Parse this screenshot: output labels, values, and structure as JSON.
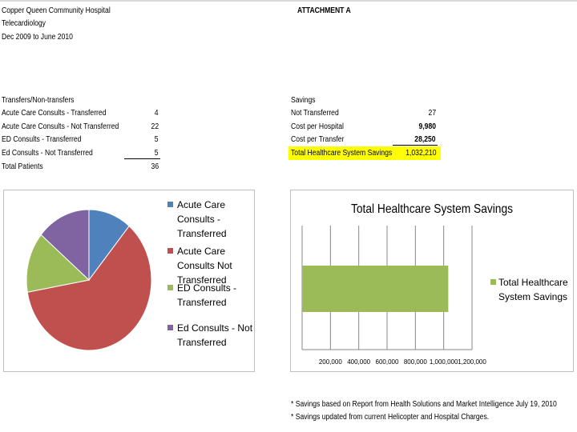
{
  "header": {
    "org": "Copper Queen Community Hospital",
    "program": "Telecardiology",
    "period": "Dec 2009 to June 2010",
    "attachment": "ATTACHMENT A"
  },
  "transfers": {
    "title": "Transfers/Non-transfers",
    "rows": [
      {
        "label": "Acute Care Consults - Transferred",
        "value": "4"
      },
      {
        "label": "Acute Care Consults - Not Transferred",
        "value": "22"
      },
      {
        "label": "ED Consults - Transferred",
        "value": "5"
      },
      {
        "label": "Ed Consults - Not Transferred",
        "value": "5"
      },
      {
        "label": "Total Patients",
        "value": "36"
      }
    ]
  },
  "savings": {
    "title": "Savings",
    "rows": [
      {
        "label": "Not Transferred",
        "value": "27"
      },
      {
        "label": "Cost per Hospital",
        "value": "9,980"
      },
      {
        "label": "Cost per Transfer",
        "value": "28,250"
      },
      {
        "label": "Total Healthcare System Savings",
        "value": "1,032,210"
      }
    ]
  },
  "colors": {
    "blue": "#4f81bd",
    "red": "#c0504d",
    "green": "#9bbb59",
    "purple": "#8064a2",
    "highlight": "#ffff00"
  },
  "chart_data": [
    {
      "type": "pie",
      "labels": [
        "Acute Care Consults - Transferred",
        "Acute Care Consults - Not Transferred",
        "ED Consults - Transferred",
        "Ed Consults - Not Transferred"
      ],
      "legend": [
        [
          "Acute Care",
          "Consults -",
          "Transferred"
        ],
        [
          "Acute Care",
          "Consults   Not",
          "Transferred"
        ],
        [
          "ED Consults -",
          "Transferred"
        ],
        [
          "Ed Consults - Not",
          "Transferred"
        ]
      ],
      "values": [
        4,
        22,
        5,
        5
      ],
      "colors": [
        "#4f81bd",
        "#c0504d",
        "#9bbb59",
        "#8064a2"
      ],
      "legend_position": "right"
    },
    {
      "type": "bar",
      "orientation": "horizontal",
      "title": "Total Healthcare System Savings",
      "series": [
        {
          "name": "Total Healthcare System Savings",
          "values": [
            1032210
          ],
          "color": "#9bbb59"
        }
      ],
      "legend_lines": [
        "Total Healthcare",
        "System Savings"
      ],
      "xlim": [
        0,
        1200000
      ],
      "xticks": [
        200000,
        400000,
        600000,
        800000,
        1000000,
        1200000
      ],
      "xtick_labels": [
        "200,000",
        "400,000",
        "600,000",
        "800,000",
        "1,000,000",
        "1,200,000"
      ],
      "grid": true,
      "legend_position": "right"
    }
  ],
  "footnotes": [
    "* Savings based on Report from Health Solutions and Market Intelligence July 19, 2010",
    "* Savings updated from current Helicopter and Hospital Charges."
  ]
}
